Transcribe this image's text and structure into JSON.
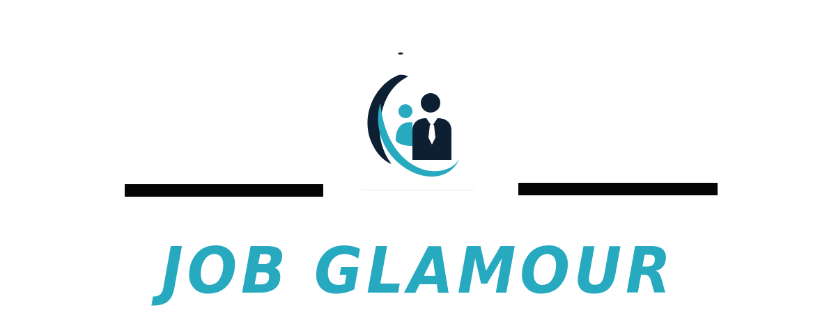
{
  "brand": {
    "name": "JOB GLAMOUR",
    "colors": {
      "primary_teal": "#27a9bf",
      "dark_navy": "#0d1f33",
      "rule_black": "#050505",
      "background": "#ffffff"
    }
  },
  "logo": {
    "icon": "business-person-icon"
  }
}
